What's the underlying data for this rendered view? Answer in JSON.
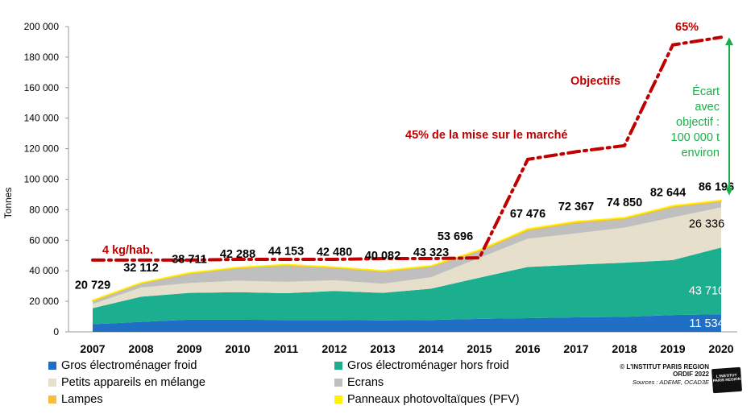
{
  "chart_data": {
    "type": "area",
    "ylabel": "Tonnes",
    "ylim": [
      0,
      200000
    ],
    "y_tick_labels": [
      "0",
      "20 000",
      "40 000",
      "60 000",
      "80 000",
      "100 000",
      "120 000",
      "140 000",
      "160 000",
      "180 000",
      "200 000"
    ],
    "x": [
      "2007",
      "2008",
      "2009",
      "2010",
      "2011",
      "2012",
      "2013",
      "2014",
      "2015",
      "2016",
      "2017",
      "2018",
      "2019",
      "2020"
    ],
    "series": [
      {
        "name": "Gros électroménager froid",
        "color": "#1F6FC5",
        "values": [
          5000,
          6500,
          8000,
          8000,
          7800,
          7800,
          7500,
          7800,
          8500,
          9000,
          9500,
          9800,
          11000,
          11534
        ]
      },
      {
        "name": "Gros électroménager hors froid",
        "color": "#1BAE8F",
        "values": [
          10500,
          16500,
          17500,
          18000,
          17500,
          19000,
          18000,
          20500,
          27000,
          33500,
          34500,
          35500,
          36000,
          43710
        ]
      },
      {
        "name": "Petits appareils en mélange",
        "color": "#E6DFCB",
        "values": [
          2729,
          6000,
          6500,
          7500,
          7500,
          7000,
          6000,
          7500,
          13000,
          18500,
          20500,
          23000,
          28000,
          26336
        ]
      },
      {
        "name": "Ecrans",
        "color": "#BFBFBF",
        "values": [
          2000,
          2800,
          6200,
          8300,
          10800,
          8200,
          8100,
          7000,
          4500,
          5500,
          7000,
          5800,
          6800,
          3900
        ]
      },
      {
        "name": "Lampes",
        "color": "#F6BE3A",
        "values": [
          400,
          300,
          400,
          400,
          450,
          400,
          400,
          450,
          600,
          800,
          700,
          650,
          700,
          600
        ]
      },
      {
        "name": "Panneaux photovoltaïques (PFV)",
        "color": "#FFF200",
        "values": [
          100,
          12,
          111,
          88,
          103,
          80,
          82,
          73,
          96,
          176,
          167,
          100,
          144,
          116
        ]
      }
    ],
    "totals": [
      20729,
      32112,
      38711,
      42288,
      44153,
      42480,
      40082,
      43323,
      53696,
      67476,
      72367,
      74850,
      82644,
      86196
    ],
    "total_labels": [
      "20 729",
      "32 112",
      "38 711",
      "42 288",
      "44 153",
      "42 480",
      "40 082",
      "43 323",
      "53 696",
      "67 476",
      "72 367",
      "74 850",
      "82 644",
      "86 196"
    ],
    "objective": {
      "color": "#C00000",
      "values": [
        47000,
        47000,
        47000,
        47500,
        47500,
        47500,
        48000,
        48000,
        48500,
        113000,
        118000,
        122000,
        188000,
        193000
      ]
    },
    "segment_labels": [
      "11 534",
      "43 710",
      "26 336"
    ],
    "annotations": {
      "kg_hab": "4 kg/hab.",
      "pct45": "45% de la mise sur le marché",
      "objectifs": "Objectifs",
      "pct65": "65%",
      "gap": [
        "Écart",
        "avec",
        "objectif :",
        "100 000 t",
        "environ"
      ],
      "gap_color": "#1BAE4B"
    },
    "grid": false,
    "legend_position": "bottom"
  },
  "credit": {
    "line1": "© L'INSTITUT PARIS REGION",
    "line2": "ORDIF 2022",
    "sources": "Sources : ADEME, OCAD3E",
    "logo": "L'INSTITUT PARIS REGION"
  }
}
